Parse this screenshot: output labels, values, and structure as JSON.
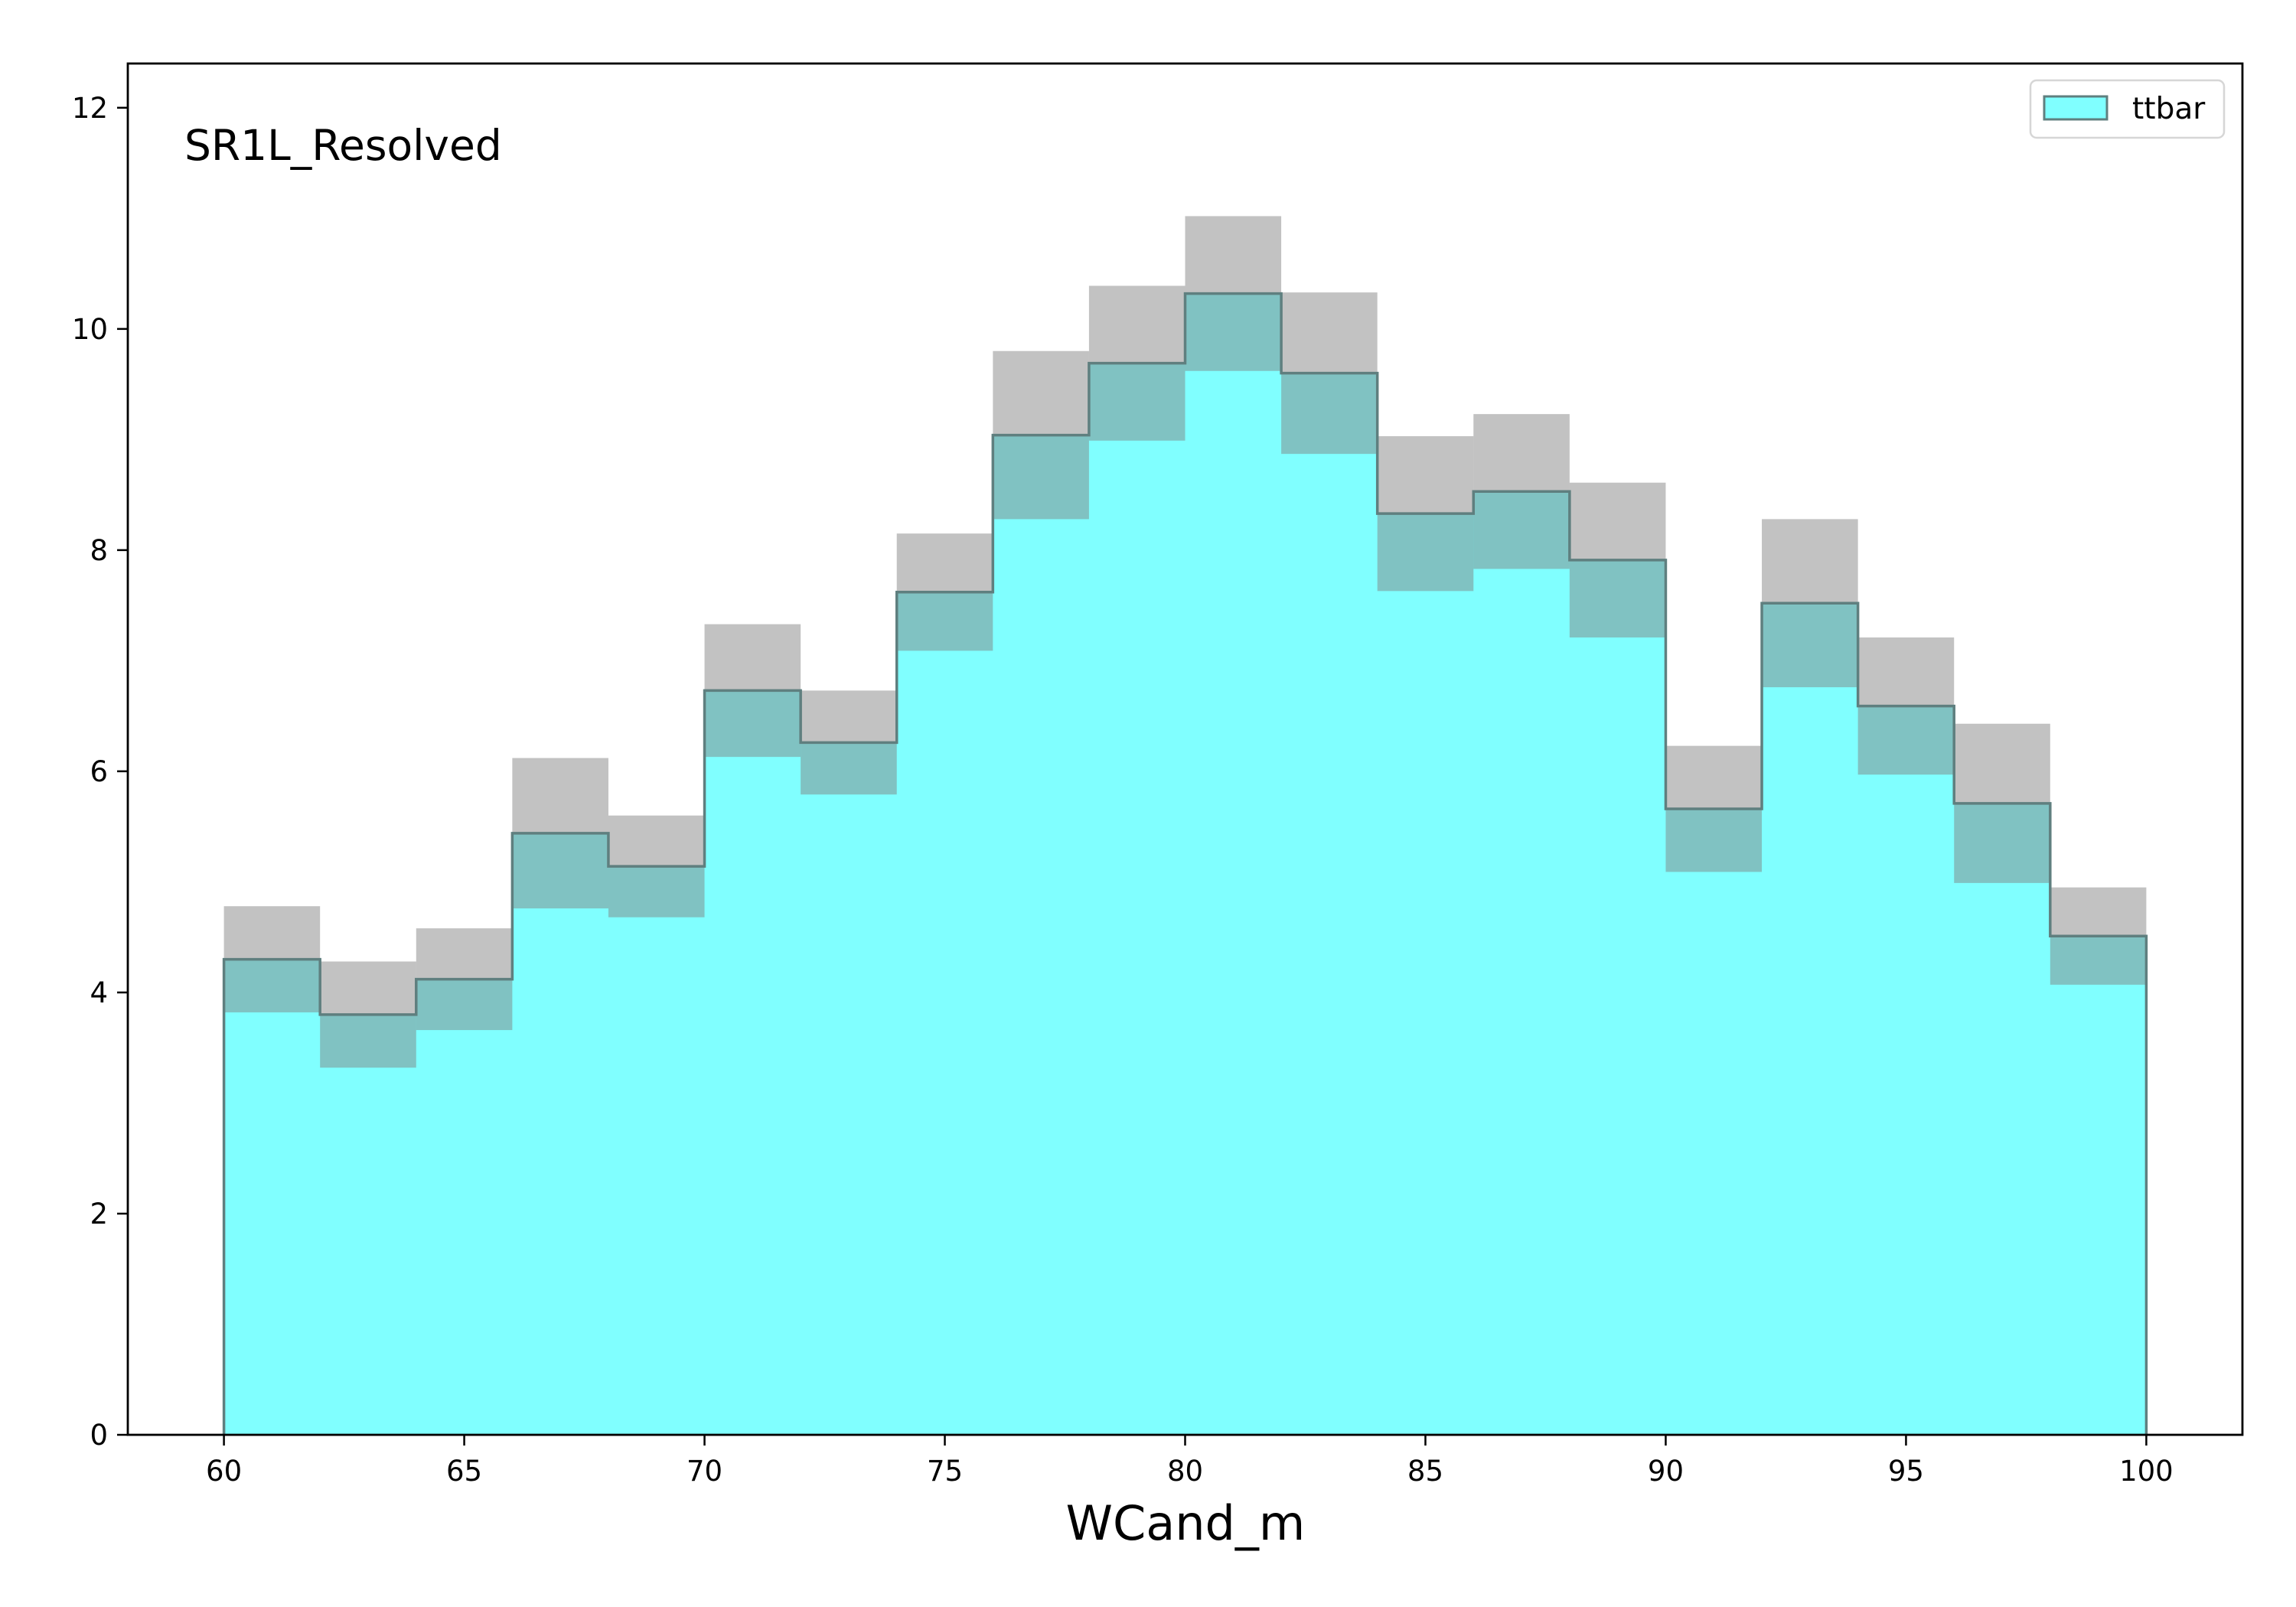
{
  "chart_data": {
    "type": "histogram",
    "annotation": "SR1L_Resolved",
    "xlabel": "WCand_m",
    "ylabel": "",
    "xlim": [
      58,
      102
    ],
    "ylim": [
      0,
      12.4
    ],
    "xticks": [
      60,
      65,
      70,
      75,
      80,
      85,
      90,
      95,
      100
    ],
    "yticks": [
      0,
      2,
      4,
      6,
      8,
      10,
      12
    ],
    "bin_edges": [
      60,
      62,
      64,
      66,
      68,
      70,
      72,
      74,
      76,
      78,
      80,
      82,
      84,
      86,
      88,
      90,
      92,
      94,
      96,
      98,
      100
    ],
    "series": [
      {
        "name": "ttbar",
        "values": [
          4.3,
          3.8,
          4.12,
          5.44,
          5.14,
          6.73,
          6.26,
          7.62,
          9.04,
          9.69,
          10.32,
          9.6,
          8.33,
          8.53,
          7.91,
          5.66,
          7.52,
          6.59,
          5.71,
          4.51
        ],
        "uncertainty": [
          0.48,
          0.48,
          0.46,
          0.68,
          0.46,
          0.6,
          0.47,
          0.53,
          0.76,
          0.7,
          0.7,
          0.73,
          0.7,
          0.7,
          0.7,
          0.57,
          0.76,
          0.62,
          0.72,
          0.44
        ]
      }
    ],
    "legend": {
      "position": "top-right",
      "entries": [
        "ttbar"
      ]
    },
    "colors": {
      "fill": "#80ffff",
      "edge": "#5f7f7f",
      "band": "#808080"
    },
    "grid": false
  }
}
